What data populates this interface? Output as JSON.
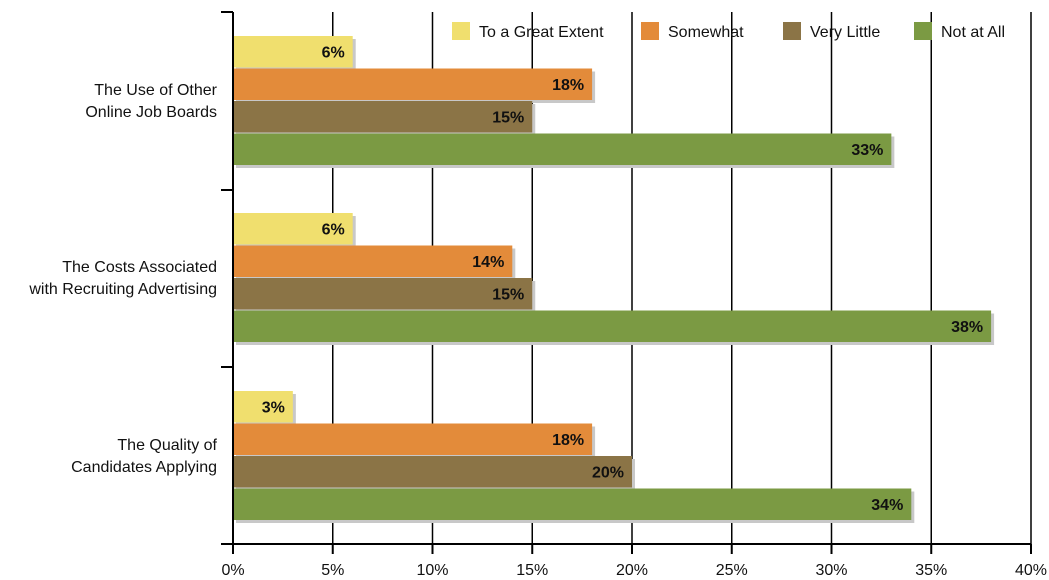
{
  "chart_data": {
    "type": "bar",
    "orientation": "horizontal",
    "title": "",
    "xlabel": "",
    "ylabel": "",
    "categories": [
      [
        "The Use of Other",
        "Online Job Boards"
      ],
      [
        "The Costs Associated",
        "with Recruiting Advertising"
      ],
      [
        "The Quality of",
        "Candidates Applying"
      ]
    ],
    "series": [
      {
        "name": "To a Great Extent",
        "color": "#f0df6e",
        "values": [
          6,
          6,
          3
        ],
        "labels": [
          "6%",
          "6%",
          "3%"
        ]
      },
      {
        "name": "Somewhat",
        "color": "#e38b3a",
        "values": [
          18,
          14,
          18
        ],
        "labels": [
          "18%",
          "14%",
          "18%"
        ]
      },
      {
        "name": "Very Little",
        "color": "#8b7446",
        "values": [
          15,
          15,
          20
        ],
        "labels": [
          "15%",
          "15%",
          "20%"
        ]
      },
      {
        "name": "Not at All",
        "color": "#7b9a43",
        "values": [
          33,
          38,
          34
        ],
        "labels": [
          "33%",
          "38%",
          "34%"
        ]
      }
    ],
    "xlim": [
      0,
      40
    ],
    "xticks": [
      0,
      5,
      10,
      15,
      20,
      25,
      30,
      35,
      40
    ],
    "xtick_labels": [
      "0%",
      "5%",
      "10%",
      "15%",
      "20%",
      "25%",
      "30%",
      "35%",
      "40%"
    ],
    "grid": "vertical",
    "legend_position": "top-right"
  }
}
